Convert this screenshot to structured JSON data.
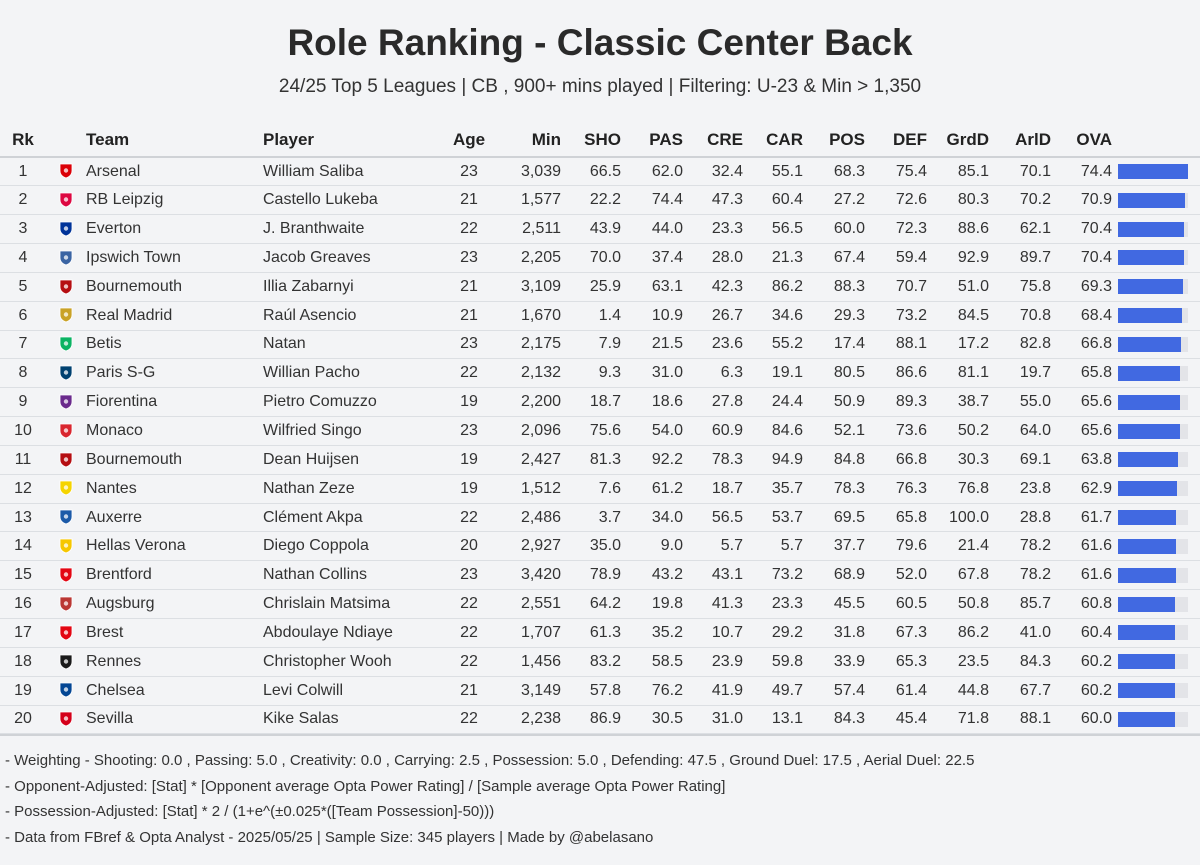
{
  "title": "Role Ranking - Classic Center Back",
  "subtitle": "24/25 Top 5 Leagues | CB , 900+ mins played | Filtering: U-23 & Min > 1,350",
  "columns": [
    "Rk",
    "",
    "Team",
    "Player",
    "Age",
    "Min",
    "SHO",
    "PAS",
    "CRE",
    "CAR",
    "POS",
    "DEF",
    "GrdD",
    "ArlD",
    "OVA"
  ],
  "colors": {
    "bar": "#4169e1",
    "bar_track": "#e3e4e8",
    "background": "#f3f4f6"
  },
  "chart_data": {
    "type": "table",
    "ova_max": 74.4,
    "rows": [
      {
        "rk": "1",
        "logo": "arsenal-crest-icon",
        "team": "Arsenal",
        "player": "William Saliba",
        "age": "23",
        "min": "3,039",
        "sho": "66.5",
        "pas": "62.0",
        "cre": "32.4",
        "car": "55.1",
        "pos": "68.3",
        "def": "75.4",
        "grdd": "85.1",
        "arld": "70.1",
        "ova": "74.4"
      },
      {
        "rk": "2",
        "logo": "rb-leipzig-crest-icon",
        "team": "RB Leipzig",
        "player": "Castello Lukeba",
        "age": "21",
        "min": "1,577",
        "sho": "22.2",
        "pas": "74.4",
        "cre": "47.3",
        "car": "60.4",
        "pos": "27.2",
        "def": "72.6",
        "grdd": "80.3",
        "arld": "70.2",
        "ova": "70.9"
      },
      {
        "rk": "3",
        "logo": "everton-crest-icon",
        "team": "Everton",
        "player": "J. Branthwaite",
        "age": "22",
        "min": "2,511",
        "sho": "43.9",
        "pas": "44.0",
        "cre": "23.3",
        "car": "56.5",
        "pos": "60.0",
        "def": "72.3",
        "grdd": "88.6",
        "arld": "62.1",
        "ova": "70.4"
      },
      {
        "rk": "4",
        "logo": "ipswich-crest-icon",
        "team": "Ipswich Town",
        "player": "Jacob Greaves",
        "age": "23",
        "min": "2,205",
        "sho": "70.0",
        "pas": "37.4",
        "cre": "28.0",
        "car": "21.3",
        "pos": "67.4",
        "def": "59.4",
        "grdd": "92.9",
        "arld": "89.7",
        "ova": "70.4"
      },
      {
        "rk": "5",
        "logo": "bournemouth-crest-icon",
        "team": "Bournemouth",
        "player": "Illia Zabarnyi",
        "age": "21",
        "min": "3,109",
        "sho": "25.9",
        "pas": "63.1",
        "cre": "42.3",
        "car": "86.2",
        "pos": "88.3",
        "def": "70.7",
        "grdd": "51.0",
        "arld": "75.8",
        "ova": "69.3"
      },
      {
        "rk": "6",
        "logo": "real-madrid-crest-icon",
        "team": "Real Madrid",
        "player": "Raúl Asencio",
        "age": "21",
        "min": "1,670",
        "sho": "1.4",
        "pas": "10.9",
        "cre": "26.7",
        "car": "34.6",
        "pos": "29.3",
        "def": "73.2",
        "grdd": "84.5",
        "arld": "70.8",
        "ova": "68.4"
      },
      {
        "rk": "7",
        "logo": "betis-crest-icon",
        "team": "Betis",
        "player": "Natan",
        "age": "23",
        "min": "2,175",
        "sho": "7.9",
        "pas": "21.5",
        "cre": "23.6",
        "car": "55.2",
        "pos": "17.4",
        "def": "88.1",
        "grdd": "17.2",
        "arld": "82.8",
        "ova": "66.8"
      },
      {
        "rk": "8",
        "logo": "psg-crest-icon",
        "team": "Paris S-G",
        "player": "Willian Pacho",
        "age": "22",
        "min": "2,132",
        "sho": "9.3",
        "pas": "31.0",
        "cre": "6.3",
        "car": "19.1",
        "pos": "80.5",
        "def": "86.6",
        "grdd": "81.1",
        "arld": "19.7",
        "ova": "65.8"
      },
      {
        "rk": "9",
        "logo": "fiorentina-crest-icon",
        "team": "Fiorentina",
        "player": "Pietro Comuzzo",
        "age": "19",
        "min": "2,200",
        "sho": "18.7",
        "pas": "18.6",
        "cre": "27.8",
        "car": "24.4",
        "pos": "50.9",
        "def": "89.3",
        "grdd": "38.7",
        "arld": "55.0",
        "ova": "65.6"
      },
      {
        "rk": "10",
        "logo": "monaco-crest-icon",
        "team": "Monaco",
        "player": "Wilfried Singo",
        "age": "23",
        "min": "2,096",
        "sho": "75.6",
        "pas": "54.0",
        "cre": "60.9",
        "car": "84.6",
        "pos": "52.1",
        "def": "73.6",
        "grdd": "50.2",
        "arld": "64.0",
        "ova": "65.6"
      },
      {
        "rk": "11",
        "logo": "bournemouth-crest-icon",
        "team": "Bournemouth",
        "player": "Dean Huijsen",
        "age": "19",
        "min": "2,427",
        "sho": "81.3",
        "pas": "92.2",
        "cre": "78.3",
        "car": "94.9",
        "pos": "84.8",
        "def": "66.8",
        "grdd": "30.3",
        "arld": "69.1",
        "ova": "63.8"
      },
      {
        "rk": "12",
        "logo": "nantes-crest-icon",
        "team": "Nantes",
        "player": "Nathan Zeze",
        "age": "19",
        "min": "1,512",
        "sho": "7.6",
        "pas": "61.2",
        "cre": "18.7",
        "car": "35.7",
        "pos": "78.3",
        "def": "76.3",
        "grdd": "76.8",
        "arld": "23.8",
        "ova": "62.9"
      },
      {
        "rk": "13",
        "logo": "auxerre-crest-icon",
        "team": "Auxerre",
        "player": "Clément Akpa",
        "age": "22",
        "min": "2,486",
        "sho": "3.7",
        "pas": "34.0",
        "cre": "56.5",
        "car": "53.7",
        "pos": "69.5",
        "def": "65.8",
        "grdd": "100.0",
        "arld": "28.8",
        "ova": "61.7"
      },
      {
        "rk": "14",
        "logo": "hellas-verona-crest-icon",
        "team": "Hellas Verona",
        "player": "Diego Coppola",
        "age": "20",
        "min": "2,927",
        "sho": "35.0",
        "pas": "9.0",
        "cre": "5.7",
        "car": "5.7",
        "pos": "37.7",
        "def": "79.6",
        "grdd": "21.4",
        "arld": "78.2",
        "ova": "61.6"
      },
      {
        "rk": "15",
        "logo": "brentford-crest-icon",
        "team": "Brentford",
        "player": "Nathan Collins",
        "age": "23",
        "min": "3,420",
        "sho": "78.9",
        "pas": "43.2",
        "cre": "43.1",
        "car": "73.2",
        "pos": "68.9",
        "def": "52.0",
        "grdd": "67.8",
        "arld": "78.2",
        "ova": "61.6"
      },
      {
        "rk": "16",
        "logo": "augsburg-crest-icon",
        "team": "Augsburg",
        "player": "Chrislain Matsima",
        "age": "22",
        "min": "2,551",
        "sho": "64.2",
        "pas": "19.8",
        "cre": "41.3",
        "car": "23.3",
        "pos": "45.5",
        "def": "60.5",
        "grdd": "50.8",
        "arld": "85.7",
        "ova": "60.8"
      },
      {
        "rk": "17",
        "logo": "brest-crest-icon",
        "team": "Brest",
        "player": "Abdoulaye Ndiaye",
        "age": "22",
        "min": "1,707",
        "sho": "61.3",
        "pas": "35.2",
        "cre": "10.7",
        "car": "29.2",
        "pos": "31.8",
        "def": "67.3",
        "grdd": "86.2",
        "arld": "41.0",
        "ova": "60.4"
      },
      {
        "rk": "18",
        "logo": "rennes-crest-icon",
        "team": "Rennes",
        "player": "Christopher Wooh",
        "age": "22",
        "min": "1,456",
        "sho": "83.2",
        "pas": "58.5",
        "cre": "23.9",
        "car": "59.8",
        "pos": "33.9",
        "def": "65.3",
        "grdd": "23.5",
        "arld": "84.3",
        "ova": "60.2"
      },
      {
        "rk": "19",
        "logo": "chelsea-crest-icon",
        "team": "Chelsea",
        "player": "Levi Colwill",
        "age": "21",
        "min": "3,149",
        "sho": "57.8",
        "pas": "76.2",
        "cre": "41.9",
        "car": "49.7",
        "pos": "57.4",
        "def": "61.4",
        "grdd": "44.8",
        "arld": "67.7",
        "ova": "60.2"
      },
      {
        "rk": "20",
        "logo": "sevilla-crest-icon",
        "team": "Sevilla",
        "player": "Kike Salas",
        "age": "22",
        "min": "2,238",
        "sho": "86.9",
        "pas": "30.5",
        "cre": "31.0",
        "car": "13.1",
        "pos": "84.3",
        "def": "45.4",
        "grdd": "71.8",
        "arld": "88.1",
        "ova": "60.0"
      }
    ]
  },
  "crest_colors": {
    "Arsenal": "#db0007",
    "RB Leipzig": "#dd0741",
    "Everton": "#003399",
    "Ipswich Town": "#3a64a3",
    "Bournemouth": "#b50e12",
    "Real Madrid": "#c9a227",
    "Betis": "#0bb363",
    "Paris S-G": "#004170",
    "Fiorentina": "#6a2a8c",
    "Monaco": "#d9262f",
    "Nantes": "#f5d400",
    "Auxerre": "#1c5aa8",
    "Hellas Verona": "#f6c700",
    "Brentford": "#e30613",
    "Augsburg": "#ba3733",
    "Brest": "#e30613",
    "Rennes": "#1a1a1a",
    "Chelsea": "#034694",
    "Sevilla": "#d4001a"
  },
  "notes": [
    "- Weighting - Shooting: 0.0 , Passing: 5.0 , Creativity: 0.0 , Carrying: 2.5 , Possession: 5.0 , Defending: 47.5 , Ground Duel: 17.5 , Aerial Duel: 22.5",
    "- Opponent-Adjusted: [Stat] * [Opponent average Opta Power Rating] / [Sample average Opta Power Rating]",
    "- Possession-Adjusted: [Stat] * 2 / (1+e^(±0.025*([Team Possession]-50)))",
    "- Data from FBref & Opta Analyst - 2025/05/25 | Sample Size: 345 players | Made by @abelasano"
  ]
}
